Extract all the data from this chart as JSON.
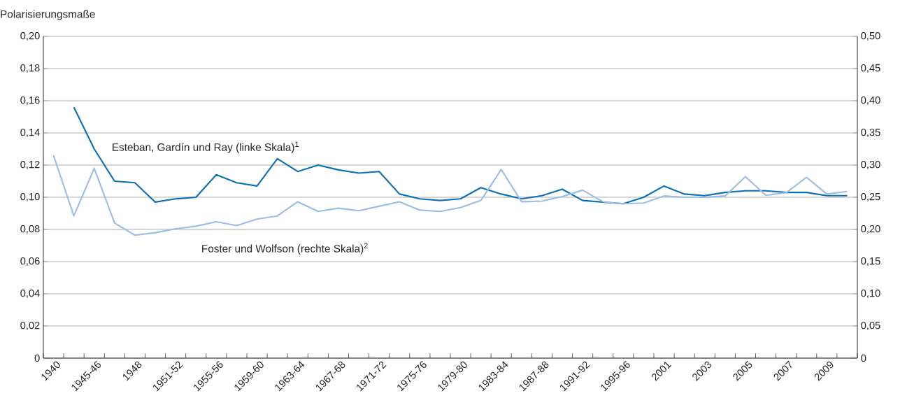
{
  "chart_data": {
    "type": "line",
    "ylabel": "Polarisierungsmaße",
    "categories": [
      "1940",
      null,
      "1945-46",
      null,
      "1948",
      null,
      "1951-52",
      null,
      "1955-56",
      null,
      "1959-60",
      null,
      "1963-64",
      null,
      "1967-68",
      null,
      "1971-72",
      null,
      "1975-76",
      null,
      "1979-80",
      null,
      "1983-84",
      null,
      "1987-88",
      null,
      "1991-92",
      null,
      "1995-96",
      null,
      "2001",
      null,
      "2003",
      null,
      "2005",
      null,
      "2007",
      null,
      "2009",
      null
    ],
    "series": [
      {
        "name": "Esteban, Gardín und Ray (linke Skala)$^{1}$",
        "color": "#0b70b4",
        "values": [
          null,
          0.156,
          0.13,
          0.11,
          0.109,
          0.097,
          0.099,
          0.1,
          0.114,
          0.109,
          0.107,
          0.124,
          0.116,
          0.12,
          0.117,
          0.115,
          0.116,
          0.102,
          0.099,
          0.098,
          0.099,
          0.106,
          0.102,
          0.099,
          0.101,
          0.105,
          0.098,
          0.097,
          0.096,
          0.1,
          0.107,
          0.102,
          0.101,
          0.103,
          0.104,
          0.104,
          0.103,
          0.103,
          0.101,
          0.101
        ]
      },
      {
        "name": "Foster und Wolfson (rechte Skala)$^{2}$",
        "color": "#9dbce6",
        "axis": "y2",
        "values": [
          0.315,
          0.221,
          0.295,
          0.21,
          0.191,
          0.195,
          0.201,
          0.205,
          0.212,
          0.206,
          0.216,
          0.221,
          0.243,
          0.228,
          0.233,
          0.229,
          0.236,
          0.243,
          0.23,
          0.228,
          0.234,
          0.245,
          0.293,
          0.243,
          0.244,
          0.251,
          0.261,
          0.243,
          0.24,
          0.241,
          0.252,
          0.25,
          0.25,
          0.252,
          0.282,
          0.253,
          0.257,
          0.281,
          0.255,
          0.259
        ]
      }
    ],
    "ylim": [
      0,
      0.2
    ],
    "yticks": [
      0,
      {
        "value": 0.02,
        "label": "0,02"
      },
      {
        "value": 0.04,
        "label": "0,04"
      },
      {
        "value": 0.06,
        "label": "0,06"
      },
      {
        "value": 0.08,
        "label": "0,08"
      },
      {
        "value": 0.1,
        "label": "0,10"
      },
      {
        "value": 0.12,
        "label": "0,12"
      },
      {
        "value": 0.14,
        "label": "0,14"
      },
      {
        "value": 0.16,
        "label": "0,16"
      },
      {
        "value": 0.18,
        "label": "0,18"
      },
      {
        "value": 0.2,
        "label": "0,20"
      }
    ],
    "y2lim": [
      0,
      0.5
    ],
    "y2ticks": [
      0,
      {
        "value": 0.05,
        "label": "0,05"
      },
      {
        "value": 0.1,
        "label": "0,10"
      },
      {
        "value": 0.15,
        "label": "0,15"
      },
      {
        "value": 0.2,
        "label": "0,20"
      },
      {
        "value": 0.25,
        "label": "0,25"
      },
      {
        "value": 0.3,
        "label": "0,30"
      },
      {
        "value": 0.35,
        "label": "0,35"
      },
      {
        "value": 0.4,
        "label": "0,40"
      },
      {
        "value": 0.45,
        "label": "0,45"
      },
      {
        "value": 0.5,
        "label": "0,50"
      }
    ],
    "grid": "y",
    "legend": false
  }
}
